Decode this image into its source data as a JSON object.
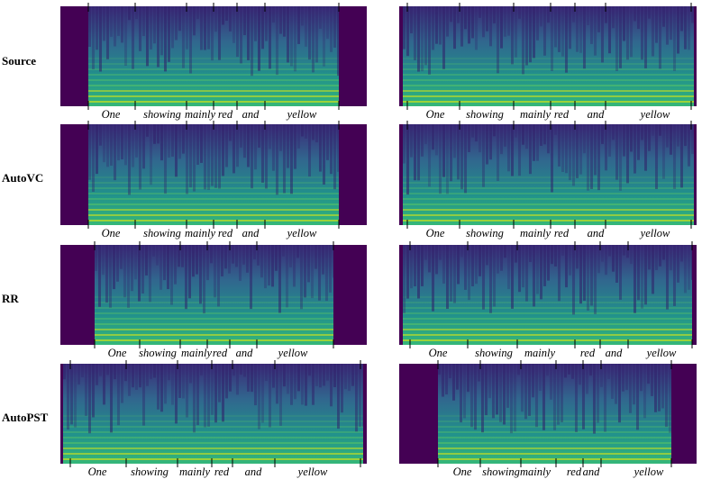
{
  "rows": [
    {
      "label": "Source",
      "panels": [
        {
          "words": [
            "One",
            "showing",
            "mainly",
            "red",
            "and",
            "yellow"
          ]
        },
        {
          "words": [
            "One",
            "showing",
            "mainly",
            "red",
            "and",
            "yellow"
          ]
        }
      ]
    },
    {
      "label": "AutoVC",
      "panels": [
        {
          "words": [
            "One",
            "showing",
            "mainly",
            "red",
            "and",
            "yellow"
          ]
        },
        {
          "words": [
            "One",
            "showing",
            "mainly",
            "red",
            "and",
            "yellow"
          ]
        }
      ]
    },
    {
      "label": "RR",
      "panels": [
        {
          "words": [
            "One",
            "showing",
            "mainly",
            "red",
            "and",
            "yellow"
          ]
        },
        {
          "words": [
            "One",
            "showing",
            "mainly",
            "red",
            "and",
            "yellow"
          ]
        }
      ]
    },
    {
      "label": "AutoPST",
      "panels": [
        {
          "words": [
            "One",
            "showing",
            "mainly",
            "red",
            "and",
            "yellow"
          ]
        },
        {
          "words": [
            "One",
            "showing",
            "mainly",
            "red",
            "and",
            "yellow"
          ]
        }
      ]
    }
  ]
}
